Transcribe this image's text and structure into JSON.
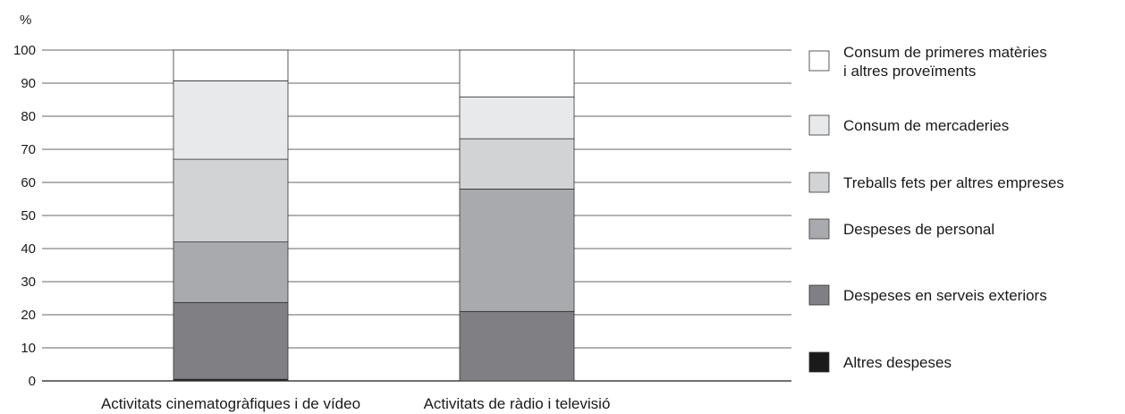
{
  "chart_data": {
    "type": "bar",
    "stacked": true,
    "ylabel": "%",
    "ylim": [
      0,
      100
    ],
    "yticks": [
      0,
      10,
      20,
      30,
      40,
      50,
      60,
      70,
      80,
      90,
      100
    ],
    "grid": true,
    "legend_position": "right",
    "categories": [
      "Activitats cinematogràfiques i de vídeo",
      "Activitats de ràdio i televisió"
    ],
    "series": [
      {
        "name": "Altres despeses",
        "color": "#1a1a1a",
        "values": [
          0.5,
          0
        ]
      },
      {
        "name": "Despeses en serveis exteriors",
        "color": "#808084",
        "values": [
          23.2,
          21
        ]
      },
      {
        "name": "Despeses de personal",
        "color": "#a9aaad",
        "values": [
          18.3,
          37
        ]
      },
      {
        "name": "Treballs fets per altres empreses",
        "color": "#d2d3d5",
        "values": [
          25,
          15.2
        ]
      },
      {
        "name": "Consum de mercaderies",
        "color": "#e8e9ea",
        "values": [
          23.7,
          12.6
        ]
      },
      {
        "name": "Consum de primeres matèries i altres proveïments",
        "color": "#ffffff",
        "values": [
          9.3,
          14.2
        ]
      }
    ]
  }
}
